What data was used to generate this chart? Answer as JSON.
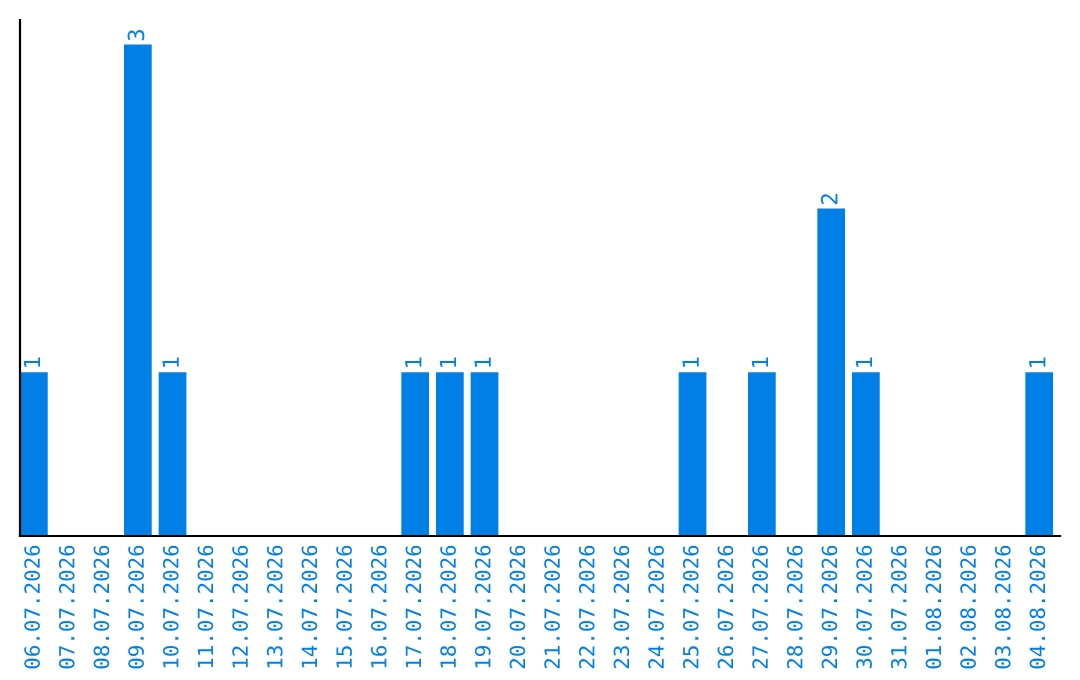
{
  "chart_data": {
    "type": "bar",
    "categories": [
      "06.07.2026",
      "07.07.2026",
      "08.07.2026",
      "09.07.2026",
      "10.07.2026",
      "11.07.2026",
      "12.07.2026",
      "13.07.2026",
      "14.07.2026",
      "15.07.2026",
      "16.07.2026",
      "17.07.2026",
      "18.07.2026",
      "19.07.2026",
      "20.07.2026",
      "21.07.2026",
      "22.07.2026",
      "23.07.2026",
      "24.07.2026",
      "25.07.2026",
      "26.07.2026",
      "27.07.2026",
      "28.07.2026",
      "29.07.2026",
      "30.07.2026",
      "31.07.2026",
      "01.08.2026",
      "02.08.2026",
      "03.08.2026",
      "04.08.2026"
    ],
    "values": [
      1,
      0,
      0,
      3,
      1,
      0,
      0,
      0,
      0,
      0,
      0,
      1,
      1,
      1,
      0,
      0,
      0,
      0,
      0,
      1,
      0,
      1,
      0,
      2,
      1,
      0,
      0,
      0,
      0,
      1
    ],
    "value_labels": [
      "1",
      null,
      null,
      "3",
      "1",
      null,
      null,
      null,
      null,
      null,
      null,
      "1",
      "1",
      "1",
      null,
      null,
      null,
      null,
      null,
      "1",
      null,
      "1",
      null,
      "2",
      "1",
      null,
      null,
      null,
      null,
      "1"
    ],
    "color": "#0080e6",
    "grid": false,
    "legend": false
  }
}
